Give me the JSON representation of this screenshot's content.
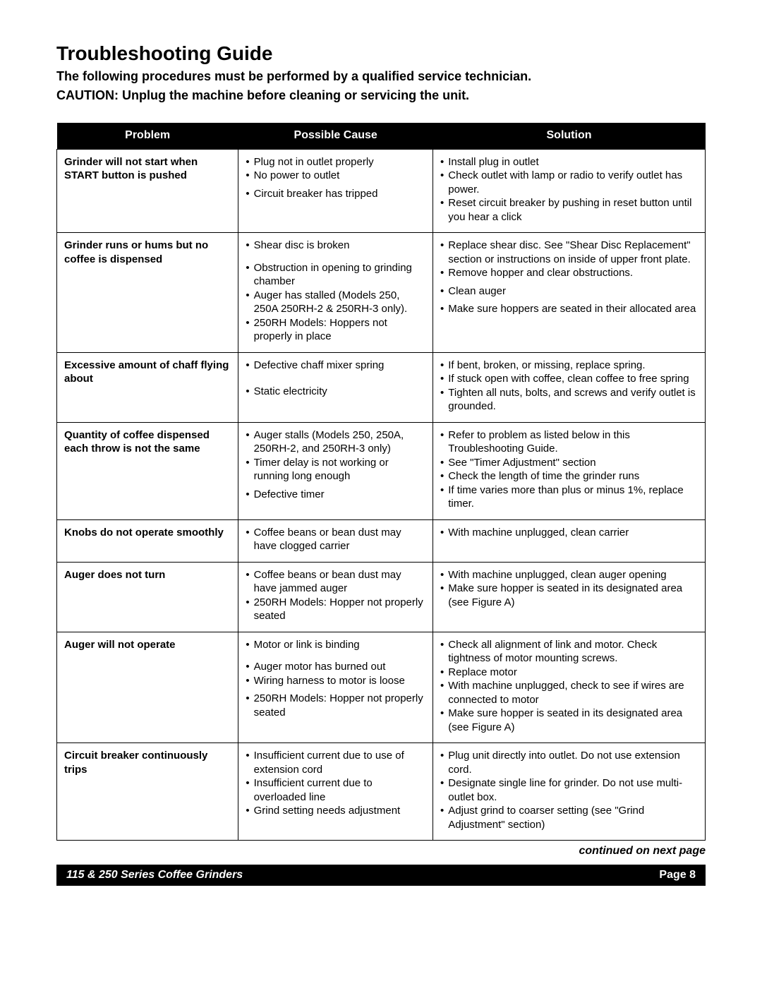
{
  "title": "Troubleshooting Guide",
  "subtitle": "The following procedures must be performed by a qualified service technician.",
  "caution": "CAUTION: Unplug the machine before cleaning or servicing the unit.",
  "columns": [
    "Problem",
    "Possible Cause",
    "Solution"
  ],
  "rows": [
    {
      "problem": "Grinder will not start when START button is pushed",
      "causes": [
        "Plug not in outlet properly",
        "No power to outlet",
        "",
        "Circuit breaker has tripped"
      ],
      "solutions": [
        "Install plug in outlet",
        "Check outlet with lamp or radio to verify outlet has power.",
        "Reset circuit breaker by pushing in reset button until you hear a click"
      ]
    },
    {
      "problem": "Grinder runs or hums but no coffee is dispensed",
      "causes": [
        "Shear disc is broken",
        "",
        "",
        "Obstruction in opening to grinding chamber",
        "Auger has stalled (Models 250, 250A 250RH-2 & 250RH-3 only).",
        "250RH Models: Hoppers not properly in place"
      ],
      "solutions": [
        "Replace shear disc. See \"Shear Disc Replacement\" section or instructions on inside of upper front plate.",
        "Remove hopper and clear obstructions.",
        "",
        "Clean auger",
        "",
        "Make sure hoppers are seated in their allocated area"
      ]
    },
    {
      "problem": "Excessive amount of chaff flying about",
      "causes": [
        "Defective chaff mixer spring",
        "",
        "",
        "",
        "Static electricity"
      ],
      "solutions": [
        "If bent, broken, or missing, replace spring.",
        "If stuck open with coffee, clean coffee to free spring",
        "Tighten all nuts, bolts, and screws and verify outlet is grounded."
      ]
    },
    {
      "problem": "Quantity of coffee dispensed each throw is not the same",
      "causes": [
        "Auger stalls (Models 250, 250A, 250RH-2, and 250RH-3 only)",
        "Timer delay is not working or running long enough",
        "",
        "Defective timer"
      ],
      "solutions": [
        "Refer to problem as listed below in this Troubleshooting Guide.",
        "See \"Timer Adjustment\" section",
        "Check the length of time the grinder runs",
        "If time varies more than plus or minus 1%, replace timer."
      ]
    },
    {
      "problem": "Knobs do not operate smoothly",
      "causes": [
        "Coffee beans or bean dust may have clogged carrier"
      ],
      "solutions": [
        "With machine unplugged, clean carrier"
      ]
    },
    {
      "problem": "Auger does not turn",
      "causes": [
        "Coffee beans or bean dust may have jammed auger",
        "250RH Models: Hopper not properly seated"
      ],
      "solutions": [
        "With machine unplugged, clean auger opening",
        "Make sure hopper is seated in its designated area (see Figure A)"
      ]
    },
    {
      "problem": "Auger will not operate",
      "causes": [
        "Motor or link is binding",
        "",
        "",
        "Auger motor has burned out",
        "Wiring harness to motor is loose",
        "",
        "250RH Models: Hopper not properly seated"
      ],
      "solutions": [
        "Check all alignment of link and motor. Check tightness of motor mounting screws.",
        "Replace motor",
        "With machine unplugged, check to see if wires are connected to motor",
        "Make sure hopper is seated in its designated area (see Figure A)"
      ]
    },
    {
      "problem": "Circuit breaker continuously trips",
      "causes": [
        "Insufficient current due to use of extension cord",
        "Insufficient current due to overloaded line",
        "Grind setting needs adjustment"
      ],
      "solutions": [
        "Plug unit directly into outlet. Do not use extension cord.",
        "Designate single line for grinder. Do not use multi-outlet box.",
        "Adjust grind to coarser setting (see \"Grind Adjustment\" section)"
      ]
    }
  ],
  "continued": "continued on next page",
  "footer_left": "115 & 250 Series Coffee Grinders",
  "footer_right": "Page 8",
  "colors": {
    "header_bg": "#000000",
    "header_text": "#ffffff",
    "border": "#000000",
    "text": "#000000",
    "page_bg": "#ffffff"
  },
  "fontsize": {
    "title": 28,
    "subtitle": 18,
    "body": 15,
    "header": 16,
    "footer": 16
  }
}
